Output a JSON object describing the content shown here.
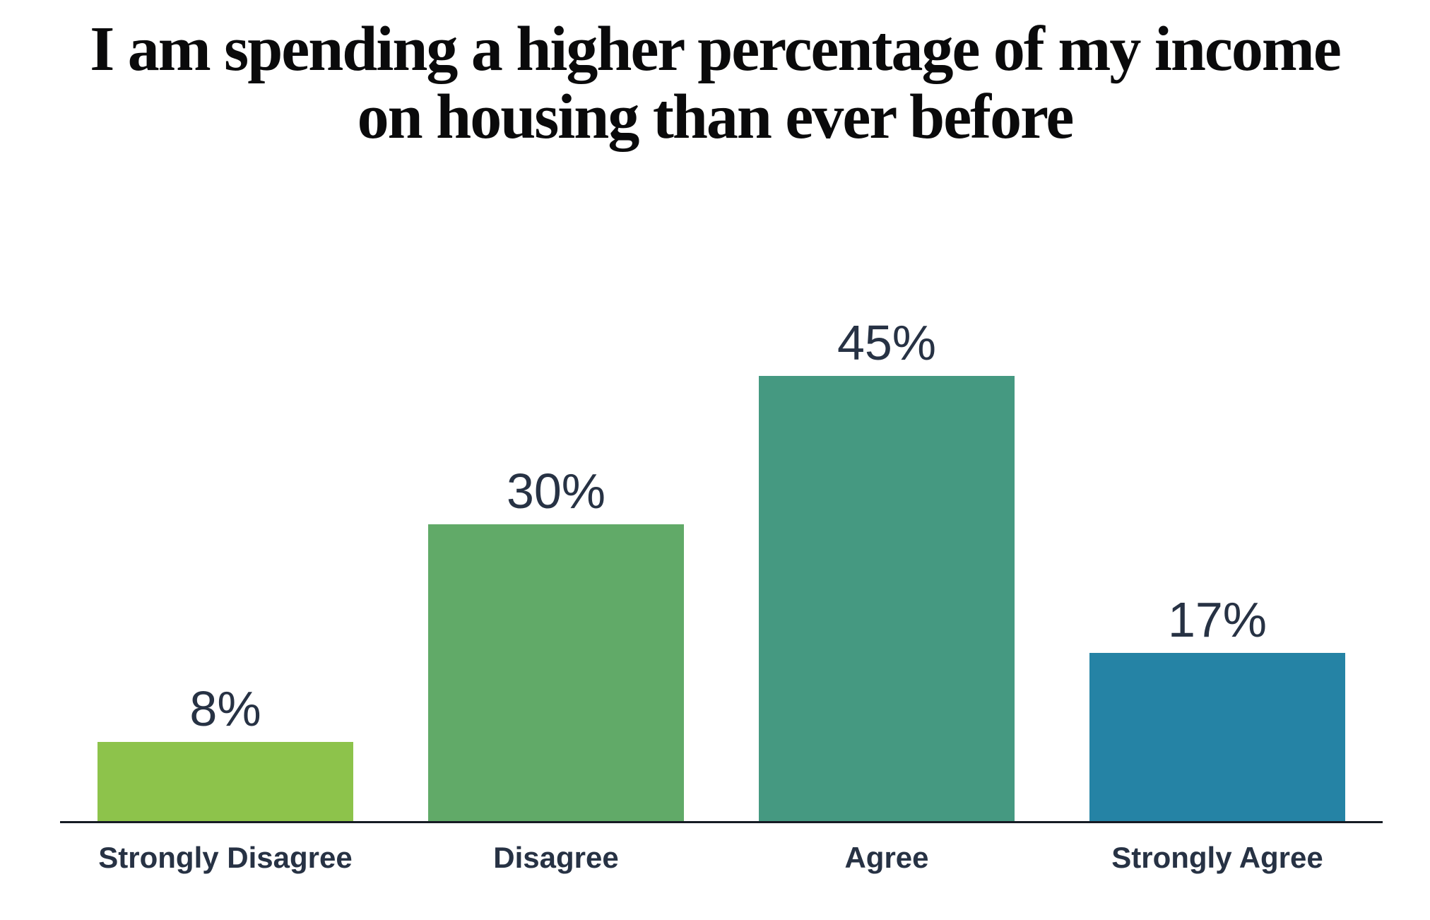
{
  "page": {
    "background": "#ffffff"
  },
  "header": {
    "title_line1": "I am spending a higher percentage of my income",
    "title_line2": "on housing than ever before"
  },
  "chart_data": {
    "type": "bar",
    "title": "I am spending a higher percentage of my income on housing than ever before",
    "categories": [
      "Strongly Disagree",
      "Disagree",
      "Agree",
      "Strongly Agree"
    ],
    "values": [
      8,
      30,
      45,
      17
    ],
    "value_labels": [
      "8%",
      "30%",
      "45%",
      "17%"
    ],
    "colors": [
      "#8dc34b",
      "#61aa68",
      "#459981",
      "#2583a5"
    ],
    "xlabel": "",
    "ylabel": "",
    "ylim": [
      0,
      50
    ],
    "grid": false,
    "legend": false,
    "value_label_position": "above-bar",
    "text_color": "#273244",
    "axis_line_color": "#161b24",
    "title_color": "#0a0a0b"
  }
}
